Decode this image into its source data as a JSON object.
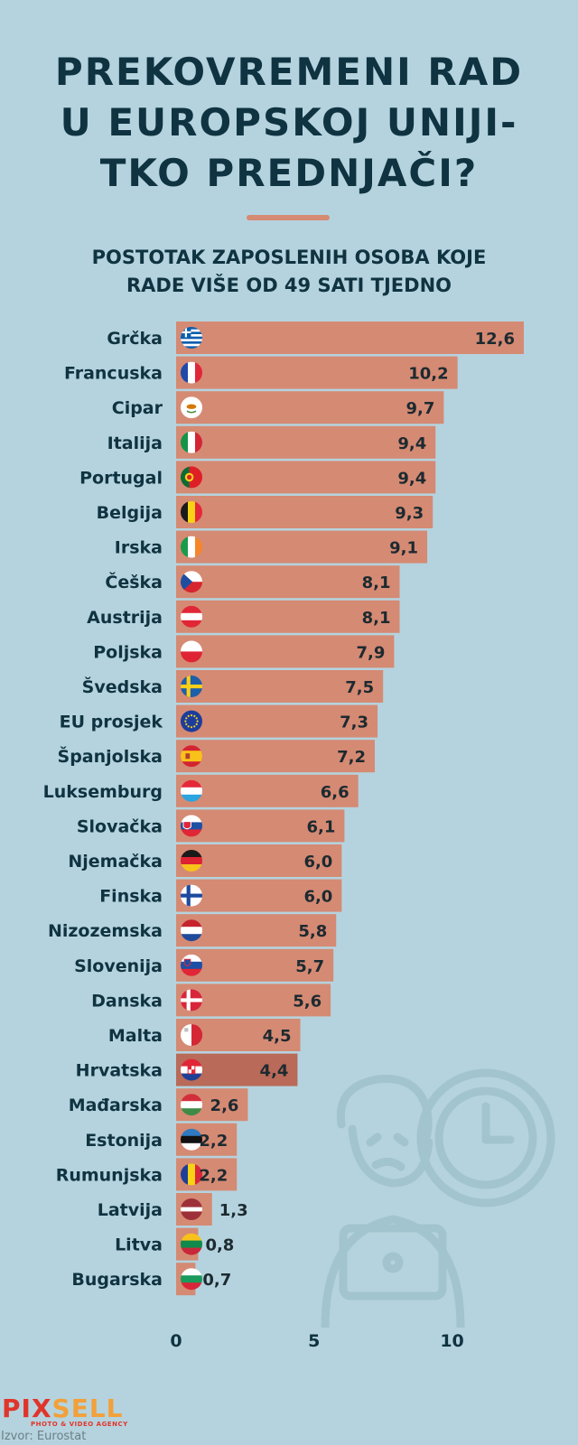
{
  "title_lines": [
    "PREKOVREMENI RAD",
    "U EUROPSKOJ UNIJI-",
    "TKO PREDNJAČI?"
  ],
  "subtitle_lines": [
    "POSTOTAK ZAPOSLENIH OSOBA KOJE",
    "RADE VIŠE OD 49 SATI TJEDNO"
  ],
  "colors": {
    "bar": "#d58a73",
    "bar_highlight": "#b96a58",
    "text": "#0f3341",
    "background": "#b5d3de",
    "decoration": "#a2c4cf"
  },
  "chart_data": {
    "type": "bar",
    "orientation": "horizontal",
    "title": "POSTOTAK ZAPOSLENIH OSOBA KOJE RADE VIŠE OD 49 SATI TJEDNO",
    "xlim": [
      0,
      12.6
    ],
    "xticks": [
      {
        "value": 0,
        "label": "0"
      },
      {
        "value": 5,
        "label": "5"
      },
      {
        "value": 10,
        "label": "10"
      }
    ],
    "grid": false,
    "highlight": "Hrvatska",
    "categories": [
      {
        "name": "Grčka",
        "value": 12.6,
        "label": "12,6",
        "flag": "greece-flag-icon"
      },
      {
        "name": "Francuska",
        "value": 10.2,
        "label": "10,2",
        "flag": "france-flag-icon"
      },
      {
        "name": "Cipar",
        "value": 9.7,
        "label": "9,7",
        "flag": "cyprus-flag-icon"
      },
      {
        "name": "Italija",
        "value": 9.4,
        "label": "9,4",
        "flag": "italy-flag-icon"
      },
      {
        "name": "Portugal",
        "value": 9.4,
        "label": "9,4",
        "flag": "portugal-flag-icon"
      },
      {
        "name": "Belgija",
        "value": 9.3,
        "label": "9,3",
        "flag": "belgium-flag-icon"
      },
      {
        "name": "Irska",
        "value": 9.1,
        "label": "9,1",
        "flag": "ireland-flag-icon"
      },
      {
        "name": "Češka",
        "value": 8.1,
        "label": "8,1",
        "flag": "czechia-flag-icon"
      },
      {
        "name": "Austrija",
        "value": 8.1,
        "label": "8,1",
        "flag": "austria-flag-icon"
      },
      {
        "name": "Poljska",
        "value": 7.9,
        "label": "7,9",
        "flag": "poland-flag-icon"
      },
      {
        "name": "Švedska",
        "value": 7.5,
        "label": "7,5",
        "flag": "sweden-flag-icon"
      },
      {
        "name": "EU prosjek",
        "value": 7.3,
        "label": "7,3",
        "flag": "eu-flag-icon"
      },
      {
        "name": "Španjolska",
        "value": 7.2,
        "label": "7,2",
        "flag": "spain-flag-icon"
      },
      {
        "name": "Luksemburg",
        "value": 6.6,
        "label": "6,6",
        "flag": "luxembourg-flag-icon"
      },
      {
        "name": "Slovačka",
        "value": 6.1,
        "label": "6,1",
        "flag": "slovakia-flag-icon"
      },
      {
        "name": "Njemačka",
        "value": 6.0,
        "label": "6,0",
        "flag": "germany-flag-icon"
      },
      {
        "name": "Finska",
        "value": 6.0,
        "label": "6,0",
        "flag": "finland-flag-icon"
      },
      {
        "name": "Nizozemska",
        "value": 5.8,
        "label": "5,8",
        "flag": "netherlands-flag-icon"
      },
      {
        "name": "Slovenija",
        "value": 5.7,
        "label": "5,7",
        "flag": "slovenia-flag-icon"
      },
      {
        "name": "Danska",
        "value": 5.6,
        "label": "5,6",
        "flag": "denmark-flag-icon"
      },
      {
        "name": "Malta",
        "value": 4.5,
        "label": "4,5",
        "flag": "malta-flag-icon"
      },
      {
        "name": "Hrvatska",
        "value": 4.4,
        "label": "4,4",
        "flag": "croatia-flag-icon"
      },
      {
        "name": "Mađarska",
        "value": 2.6,
        "label": "2,6",
        "flag": "hungary-flag-icon"
      },
      {
        "name": "Estonija",
        "value": 2.2,
        "label": "2,2",
        "flag": "estonia-flag-icon"
      },
      {
        "name": "Rumunjska",
        "value": 2.2,
        "label": "2,2",
        "flag": "romania-flag-icon"
      },
      {
        "name": "Latvija",
        "value": 1.3,
        "label": "1,3",
        "flag": "latvia-flag-icon"
      },
      {
        "name": "Litva",
        "value": 0.8,
        "label": "0,8",
        "flag": "lithuania-flag-icon"
      },
      {
        "name": "Bugarska",
        "value": 0.7,
        "label": "0,7",
        "flag": "bulgaria-flag-icon"
      }
    ]
  },
  "logo": {
    "main": "PIX",
    "accent": "SELL",
    "tagline": "PHOTO & VIDEO AGENCY"
  },
  "source": "Izvor: Eurostat"
}
